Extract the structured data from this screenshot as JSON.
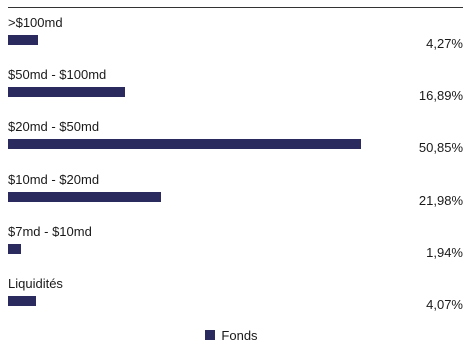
{
  "chart_data": {
    "type": "bar",
    "orientation": "horizontal",
    "categories": [
      ">$100md",
      "$50md - $100md",
      "$20md - $50md",
      "$10md - $20md",
      "$7md - $10md",
      "Liquidités"
    ],
    "series": [
      {
        "name": "Fonds",
        "values": [
          4.27,
          16.89,
          50.85,
          21.98,
          1.94,
          4.07
        ],
        "labels": [
          "4,27%",
          "16,89%",
          "50,85%",
          "21,98%",
          "1,94%",
          "4,07%"
        ]
      }
    ],
    "xlim": [
      0,
      50.85
    ],
    "grid": false,
    "legend_position": "bottom",
    "colors": {
      "bar": "#2b2a5e"
    }
  }
}
